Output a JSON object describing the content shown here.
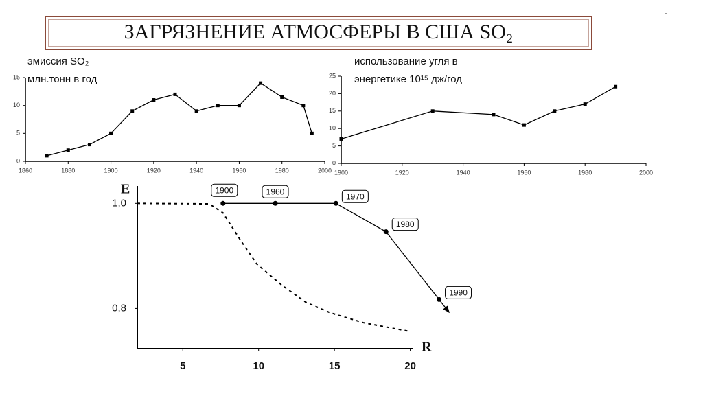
{
  "title": "ЗАГРЯЗНЕНИЕ АТМОСФЕРЫ В США SO₂",
  "chart_data": [
    {
      "type": "line",
      "y_label": [
        "эмиссия SO₂",
        "млн.тонн в год"
      ],
      "x": [
        1870,
        1880,
        1890,
        1900,
        1910,
        1920,
        1930,
        1940,
        1950,
        1960,
        1970,
        1980,
        1990,
        1994
      ],
      "series": [
        {
          "color": "#000000",
          "marker": "square",
          "values": [
            1,
            2,
            3,
            5,
            9,
            11,
            12,
            9,
            10,
            10,
            14,
            11.5,
            10,
            5
          ]
        }
      ],
      "xlim": [
        1860,
        2000
      ],
      "xticks": [
        1860,
        1880,
        1900,
        1920,
        1940,
        1960,
        1980,
        2000
      ],
      "ylim": [
        0,
        15
      ],
      "yticks": [
        0,
        5,
        10,
        15
      ]
    },
    {
      "type": "line",
      "y_label": [
        "использование угля в",
        "энергетике 10¹⁵ дж/год"
      ],
      "x": [
        1900,
        1930,
        1950,
        1960,
        1970,
        1980,
        1990
      ],
      "series": [
        {
          "color": "#000000",
          "marker": "square",
          "values": [
            7,
            15,
            14,
            11,
            15,
            17,
            22
          ]
        }
      ],
      "xlim": [
        1900,
        2000
      ],
      "xticks": [
        1900,
        1920,
        1940,
        1960,
        1980,
        2000
      ],
      "ylim": [
        0,
        25
      ],
      "yticks": [
        0,
        5,
        10,
        15,
        20,
        25
      ]
    },
    {
      "type": "line",
      "x_label": "R",
      "y_label": "E",
      "series": [
        {
          "color": "#000000",
          "marker": "circle",
          "arrow": true,
          "x": [
            7.65,
            11.1,
            15.1,
            18.4,
            21.9
          ],
          "values": [
            1.0,
            1.0,
            1.0,
            0.946,
            0.817
          ],
          "labels": [
            "1900",
            "1960",
            "1970",
            "1980",
            "1990"
          ]
        },
        {
          "color": "#000000",
          "line_style": "dashed",
          "x": [
            2,
            6.75,
            7.65,
            8.8,
            9.9,
            11.5,
            13.1,
            14.7,
            16.9,
            20
          ],
          "values": [
            1.0,
            0.999,
            0.982,
            0.93,
            0.884,
            0.845,
            0.812,
            0.792,
            0.773,
            0.756
          ]
        }
      ],
      "xlim": [
        2,
        20.2
      ],
      "xticks": [
        5,
        10,
        15,
        20
      ],
      "ylim": [
        0.73,
        1.02
      ],
      "yticks": [
        {
          "value": 1.0,
          "label": "1,0"
        },
        {
          "value": 0.8,
          "label": "0,8"
        }
      ]
    }
  ]
}
